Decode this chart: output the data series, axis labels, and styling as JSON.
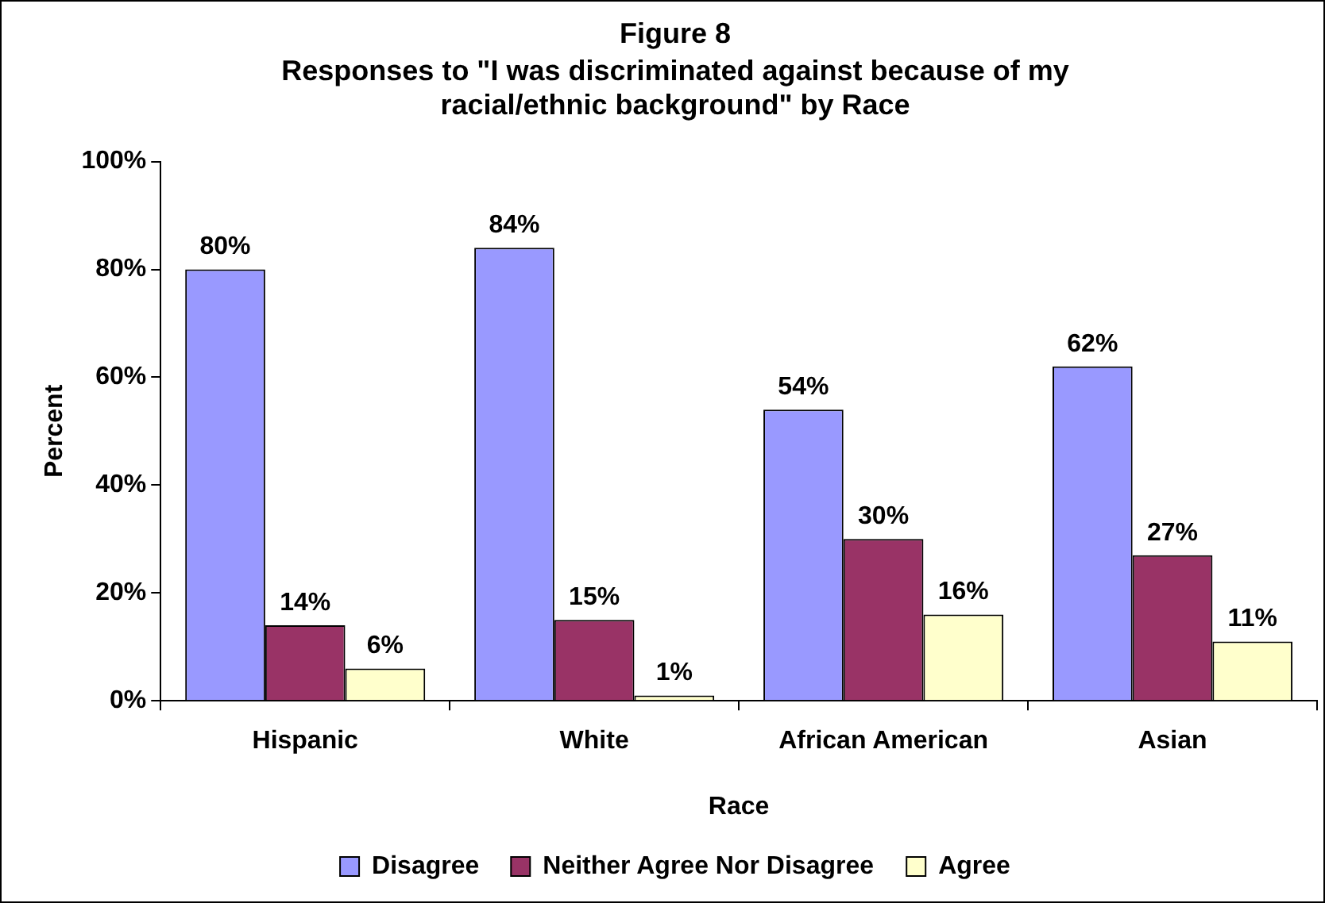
{
  "chart_data": {
    "type": "bar",
    "title": "Figure 8",
    "subtitle": "Responses to \"I was discriminated against because of my racial/ethnic background\" by Race",
    "xlabel": "Race",
    "ylabel": "Percent",
    "categories": [
      "Hispanic",
      "White",
      "African American",
      "Asian"
    ],
    "series": [
      {
        "name": "Disagree",
        "color": "#9999ff",
        "values": [
          80,
          84,
          54,
          62
        ],
        "value_labels": [
          "80%",
          "84%",
          "54%",
          "62%"
        ]
      },
      {
        "name": "Neither Agree Nor Disagree",
        "color": "#993366",
        "values": [
          14,
          15,
          30,
          27
        ],
        "value_labels": [
          "14%",
          "15%",
          "30%",
          "27%"
        ]
      },
      {
        "name": "Agree",
        "color": "#ffffcc",
        "values": [
          6,
          1,
          16,
          11
        ],
        "value_labels": [
          "6%",
          "1%",
          "16%",
          "11%"
        ]
      }
    ],
    "ylim": [
      0,
      100
    ],
    "yticks": [
      {
        "value": 0,
        "label": "0%"
      },
      {
        "value": 20,
        "label": "20%"
      },
      {
        "value": 40,
        "label": "40%"
      },
      {
        "value": 60,
        "label": "60%"
      },
      {
        "value": 80,
        "label": "80%"
      },
      {
        "value": 100,
        "label": "100%"
      }
    ],
    "grid": false,
    "legend": "bottom"
  }
}
